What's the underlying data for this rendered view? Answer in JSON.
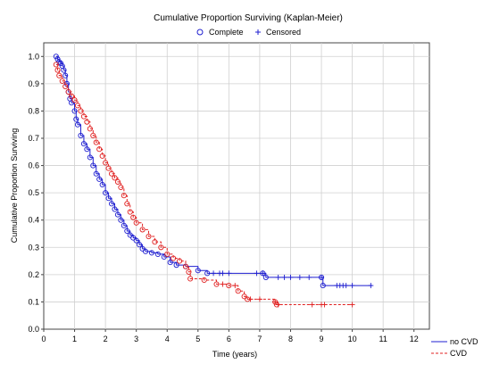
{
  "chart_data": {
    "type": "line",
    "title": "Cumulative Proportion Surviving (Kaplan-Meier)",
    "xlabel": "Time (years)",
    "ylabel": "Cumulative Proportion Surviving",
    "xlim": [
      0,
      12.5
    ],
    "ylim": [
      0,
      1.05
    ],
    "xticks": [
      "0",
      "1",
      "2",
      "3",
      "4",
      "5",
      "6",
      "7",
      "8",
      "9",
      "10",
      "11",
      "12"
    ],
    "yticks": [
      "0.0",
      "0.1",
      "0.2",
      "0.3",
      "0.4",
      "0.5",
      "0.6",
      "0.7",
      "0.8",
      "0.9",
      "1.0"
    ],
    "grid": true,
    "marker_legend": [
      {
        "label": "Complete",
        "marker": "circle"
      },
      {
        "label": "Censored",
        "marker": "plus"
      }
    ],
    "marker_legend_position": "top-center",
    "line_legend_position": "bottom-right",
    "series": [
      {
        "name": "no CVD",
        "color": "#1f1fd0",
        "line_style": "solid",
        "points": [
          [
            0.4,
            1.0
          ],
          [
            0.45,
            0.99
          ],
          [
            0.5,
            0.98
          ],
          [
            0.55,
            0.975
          ],
          [
            0.6,
            0.965
          ],
          [
            0.65,
            0.95
          ],
          [
            0.7,
            0.93
          ],
          [
            0.75,
            0.9
          ],
          [
            0.8,
            0.87
          ],
          [
            0.85,
            0.845
          ],
          [
            0.9,
            0.83
          ],
          [
            1.0,
            0.8
          ],
          [
            1.05,
            0.77
          ],
          [
            1.1,
            0.75
          ],
          [
            1.2,
            0.71
          ],
          [
            1.3,
            0.68
          ],
          [
            1.4,
            0.66
          ],
          [
            1.5,
            0.63
          ],
          [
            1.6,
            0.6
          ],
          [
            1.7,
            0.57
          ],
          [
            1.8,
            0.55
          ],
          [
            1.9,
            0.53
          ],
          [
            2.0,
            0.5
          ],
          [
            2.1,
            0.48
          ],
          [
            2.2,
            0.46
          ],
          [
            2.3,
            0.44
          ],
          [
            2.4,
            0.42
          ],
          [
            2.5,
            0.4
          ],
          [
            2.6,
            0.38
          ],
          [
            2.7,
            0.36
          ],
          [
            2.8,
            0.345
          ],
          [
            2.9,
            0.335
          ],
          [
            3.0,
            0.325
          ],
          [
            3.1,
            0.31
          ],
          [
            3.2,
            0.295
          ],
          [
            3.3,
            0.285
          ],
          [
            3.5,
            0.28
          ],
          [
            3.7,
            0.275
          ],
          [
            3.9,
            0.265
          ],
          [
            4.1,
            0.245
          ],
          [
            4.3,
            0.235
          ],
          [
            4.6,
            0.23
          ],
          [
            5.0,
            0.215
          ],
          [
            5.3,
            0.205
          ],
          [
            7.1,
            0.205
          ],
          [
            7.2,
            0.19
          ],
          [
            9.0,
            0.19
          ],
          [
            9.05,
            0.16
          ],
          [
            10.65,
            0.16
          ]
        ],
        "censored": [
          5.5,
          5.7,
          5.8,
          6.0,
          6.9,
          7.1,
          7.6,
          7.8,
          8.0,
          8.3,
          8.6,
          9.0,
          9.5,
          9.6,
          9.7,
          9.8,
          10.0,
          10.6
        ]
      },
      {
        "name": "CVD",
        "color": "#e02020",
        "line_style": "dashed",
        "points": [
          [
            0.4,
            0.97
          ],
          [
            0.45,
            0.95
          ],
          [
            0.5,
            0.93
          ],
          [
            0.6,
            0.91
          ],
          [
            0.7,
            0.89
          ],
          [
            0.8,
            0.87
          ],
          [
            0.9,
            0.855
          ],
          [
            1.0,
            0.84
          ],
          [
            1.1,
            0.82
          ],
          [
            1.2,
            0.8
          ],
          [
            1.3,
            0.78
          ],
          [
            1.4,
            0.76
          ],
          [
            1.5,
            0.735
          ],
          [
            1.6,
            0.71
          ],
          [
            1.7,
            0.685
          ],
          [
            1.8,
            0.66
          ],
          [
            1.9,
            0.635
          ],
          [
            2.0,
            0.61
          ],
          [
            2.1,
            0.59
          ],
          [
            2.2,
            0.57
          ],
          [
            2.3,
            0.555
          ],
          [
            2.4,
            0.54
          ],
          [
            2.5,
            0.52
          ],
          [
            2.6,
            0.49
          ],
          [
            2.7,
            0.46
          ],
          [
            2.8,
            0.43
          ],
          [
            2.9,
            0.41
          ],
          [
            3.0,
            0.39
          ],
          [
            3.2,
            0.365
          ],
          [
            3.4,
            0.34
          ],
          [
            3.6,
            0.32
          ],
          [
            3.8,
            0.3
          ],
          [
            4.0,
            0.275
          ],
          [
            4.2,
            0.26
          ],
          [
            4.4,
            0.25
          ],
          [
            4.6,
            0.23
          ],
          [
            4.7,
            0.21
          ],
          [
            4.75,
            0.185
          ],
          [
            5.2,
            0.18
          ],
          [
            5.6,
            0.165
          ],
          [
            6.0,
            0.16
          ],
          [
            6.3,
            0.14
          ],
          [
            6.5,
            0.12
          ],
          [
            6.6,
            0.11
          ],
          [
            7.5,
            0.1
          ],
          [
            7.55,
            0.09
          ],
          [
            10.0,
            0.09
          ]
        ],
        "censored": [
          5.8,
          6.2,
          6.7,
          7.0,
          7.5,
          7.6,
          8.7,
          9.0,
          9.1,
          10.0
        ]
      }
    ]
  }
}
